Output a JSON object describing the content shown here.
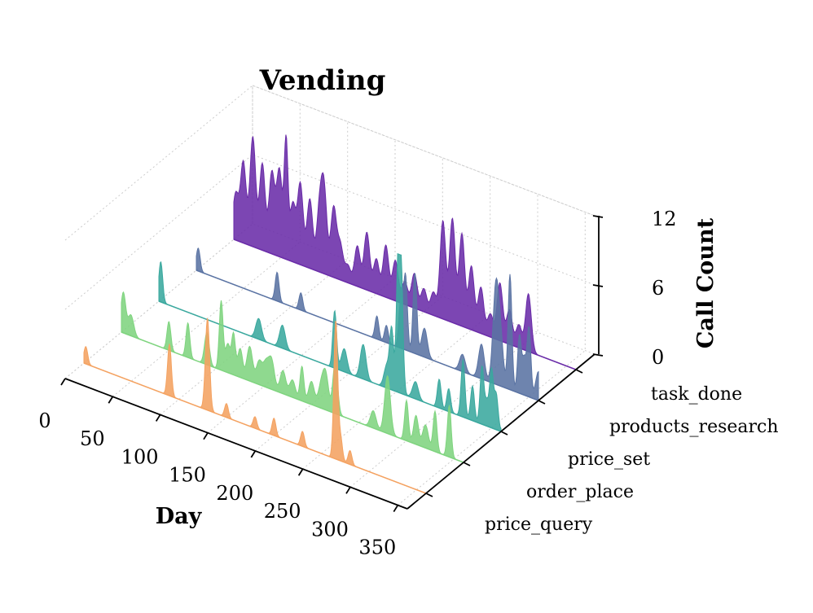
{
  "chart_data": {
    "type": "area",
    "title": "Vending",
    "xlabel": "Day",
    "ylabel": "",
    "zlabel": "Call Count",
    "xlim": [
      0,
      360
    ],
    "zlim": [
      0,
      12
    ],
    "x_ticks": [
      "0",
      "50",
      "100",
      "150",
      "200",
      "250",
      "300",
      "350"
    ],
    "z_ticks": [
      "0",
      "6",
      "12"
    ],
    "categories": [
      "price_query",
      "order_place",
      "price_set",
      "products_research",
      "task_done"
    ],
    "series": [
      {
        "name": "price_query",
        "color": "#f4a261",
        "peaks": [
          [
            2,
            1.5,
            2
          ],
          [
            90,
            4.5,
            2
          ],
          [
            130,
            8,
            2.2
          ],
          [
            150,
            1.2,
            2
          ],
          [
            180,
            1,
            2
          ],
          [
            200,
            1.5,
            2
          ],
          [
            230,
            1.3,
            2
          ],
          [
            265,
            12,
            2
          ],
          [
            270,
            2,
            2
          ],
          [
            280,
            1.2,
            2
          ]
        ]
      },
      {
        "name": "order_place",
        "color": "#7fd47f",
        "peaks": [
          [
            2,
            3.5,
            2.5
          ],
          [
            10,
            1.8,
            3
          ],
          [
            50,
            2.5,
            2
          ],
          [
            70,
            3,
            2
          ],
          [
            90,
            2.8,
            2.5
          ],
          [
            105,
            6,
            2
          ],
          [
            112,
            2.5,
            2.5
          ],
          [
            118,
            3.5,
            2
          ],
          [
            125,
            2.5,
            2.5
          ],
          [
            135,
            3,
            3
          ],
          [
            145,
            2,
            3
          ],
          [
            152,
            2,
            3
          ],
          [
            158,
            2.5,
            3
          ],
          [
            170,
            2,
            3
          ],
          [
            180,
            1.5,
            3
          ],
          [
            190,
            3,
            2
          ],
          [
            200,
            2,
            3
          ],
          [
            210,
            1.8,
            3
          ],
          [
            215,
            3,
            3
          ],
          [
            225,
            4.5,
            2.5
          ],
          [
            265,
            1.5,
            3
          ],
          [
            280,
            5,
            3
          ],
          [
            300,
            3.5,
            2
          ],
          [
            310,
            2.5,
            2.5
          ],
          [
            320,
            2,
            3
          ],
          [
            330,
            3.5,
            2
          ],
          [
            345,
            4.5,
            2
          ]
        ]
      },
      {
        "name": "price_set",
        "color": "#3aa89e",
        "peaks": [
          [
            2,
            3.5,
            2
          ],
          [
            105,
            1.8,
            3
          ],
          [
            130,
            2,
            3
          ],
          [
            185,
            5,
            2
          ],
          [
            195,
            2,
            3
          ],
          [
            215,
            3,
            3
          ],
          [
            240,
            2,
            3
          ],
          [
            245,
            5,
            2
          ],
          [
            252,
            12,
            2
          ],
          [
            255,
            9,
            2
          ],
          [
            270,
            1.5,
            3
          ],
          [
            295,
            2.5,
            2
          ],
          [
            305,
            2,
            2
          ],
          [
            320,
            5,
            2
          ],
          [
            330,
            3,
            2
          ],
          [
            340,
            5,
            2
          ],
          [
            345,
            2,
            2
          ],
          [
            350,
            5,
            2
          ],
          [
            355,
            3,
            2
          ],
          [
            365,
            3,
            2
          ]
        ]
      },
      {
        "name": "products_research",
        "color": "#5a73a3",
        "peaks": [
          [
            2,
            2,
            2
          ],
          [
            85,
            2.5,
            2
          ],
          [
            110,
            1.5,
            2
          ],
          [
            190,
            2,
            2
          ],
          [
            200,
            1.5,
            2
          ],
          [
            215,
            4,
            2
          ],
          [
            220,
            6.5,
            2
          ],
          [
            230,
            7,
            2
          ],
          [
            240,
            2.5,
            3
          ],
          [
            280,
            1.5,
            3
          ],
          [
            300,
            3,
            3
          ],
          [
            315,
            8,
            3
          ],
          [
            320,
            4,
            3
          ],
          [
            330,
            10,
            2
          ],
          [
            340,
            5,
            2
          ],
          [
            345,
            3,
            2
          ],
          [
            350,
            6,
            2
          ],
          [
            360,
            2.5,
            3
          ]
        ]
      },
      {
        "name": "task_done",
        "color": "#6a2ca8",
        "peaks": [
          [
            2,
            4,
            3
          ],
          [
            10,
            7,
            3
          ],
          [
            20,
            9.5,
            3
          ],
          [
            30,
            7.5,
            3
          ],
          [
            40,
            7,
            3
          ],
          [
            48,
            7.5,
            3
          ],
          [
            55,
            10,
            2
          ],
          [
            62,
            5,
            3
          ],
          [
            70,
            7,
            3
          ],
          [
            80,
            6,
            3
          ],
          [
            90,
            5,
            3
          ],
          [
            95,
            7,
            3
          ],
          [
            105,
            6,
            3
          ],
          [
            112,
            3,
            3
          ],
          [
            120,
            1.5,
            3
          ],
          [
            130,
            3.5,
            3
          ],
          [
            140,
            5,
            3
          ],
          [
            150,
            3,
            3
          ],
          [
            160,
            4.5,
            3
          ],
          [
            170,
            3.5,
            3
          ],
          [
            180,
            2,
            3
          ],
          [
            190,
            3,
            3
          ],
          [
            200,
            2,
            3
          ],
          [
            210,
            2,
            3
          ],
          [
            220,
            8.5,
            3
          ],
          [
            230,
            9,
            3
          ],
          [
            240,
            8,
            3
          ],
          [
            250,
            5.5,
            3
          ],
          [
            260,
            4,
            3
          ],
          [
            270,
            2,
            3
          ],
          [
            280,
            5,
            3
          ],
          [
            290,
            3,
            3
          ],
          [
            300,
            2,
            3
          ],
          [
            310,
            5,
            3
          ]
        ]
      }
    ]
  }
}
